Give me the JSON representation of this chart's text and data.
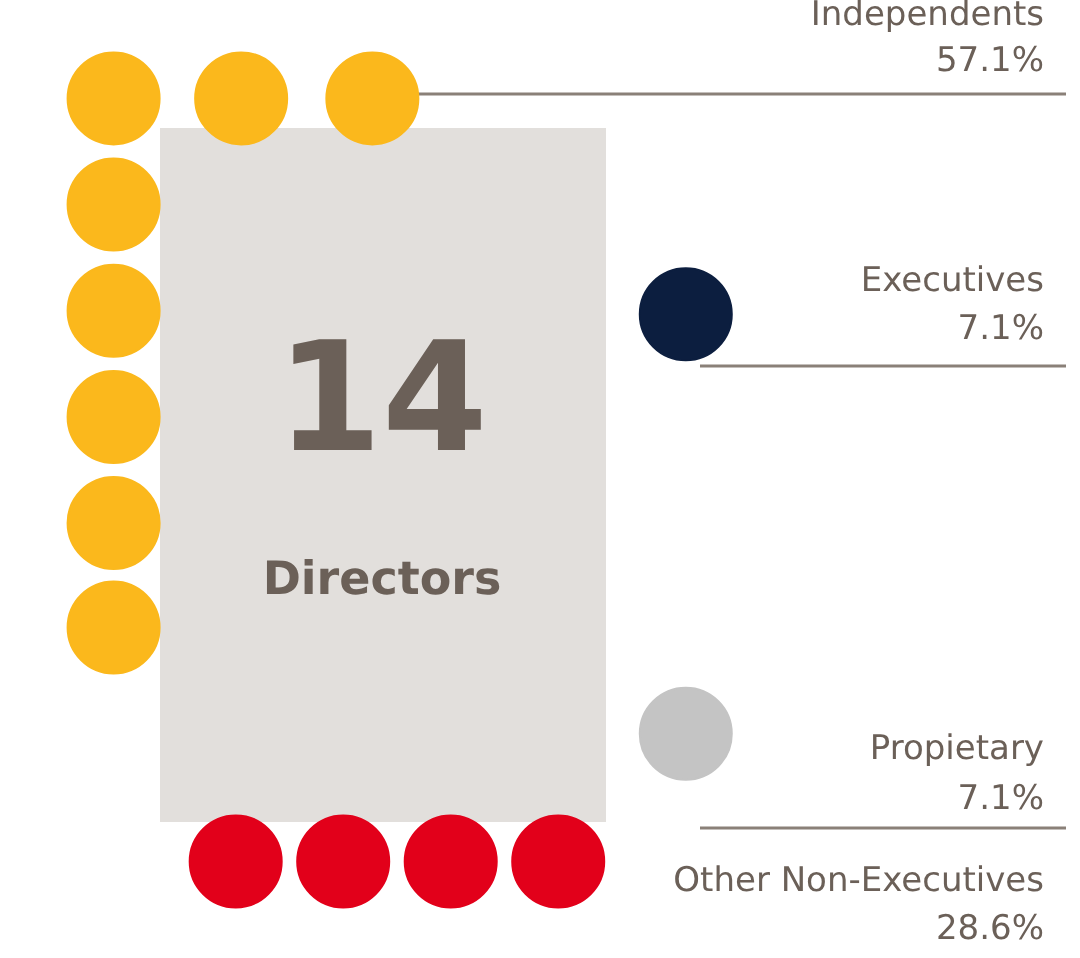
{
  "chart_data": {
    "type": "other",
    "categories": [
      "Independents",
      "Executives",
      "Propietary",
      "Other Non-Executives"
    ],
    "values": [
      57.1,
      7.1,
      7.1,
      28.6
    ],
    "value_labels": [
      "57.1%",
      "7.1%",
      "7.1%",
      "28.6%"
    ],
    "colors": [
      "#fbb81c",
      "#0c1e3f",
      "#c4c4c4",
      "#e2001a"
    ],
    "annotations": [
      "14",
      "Directors"
    ],
    "legend": false
  }
}
